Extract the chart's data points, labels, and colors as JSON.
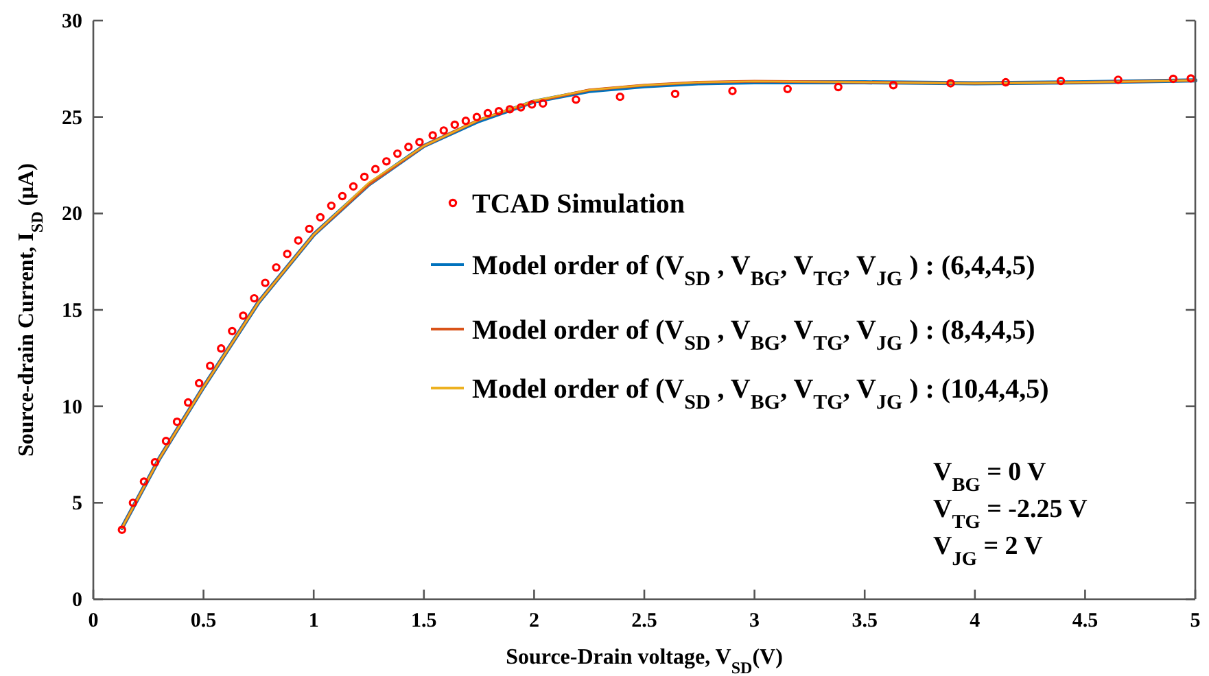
{
  "chart_data": {
    "type": "line",
    "xlabel": "Source-Drain voltage, V$_{SD}$(V)",
    "ylabel": "Source-drain Current, I$_{SD}$  (μA)",
    "xlim": [
      0,
      5
    ],
    "xticks": [
      0,
      0.5,
      1,
      1.5,
      2,
      2.5,
      3,
      3.5,
      4,
      4.5,
      5
    ],
    "ylim": [
      0,
      30
    ],
    "yticks": [
      0,
      5,
      10,
      15,
      20,
      25,
      30
    ],
    "grid": false,
    "legend": "center",
    "series": [
      {
        "name": "TCAD Simulation",
        "type": "scatter",
        "marker": "circle",
        "color": "#ff0000",
        "x": [
          0.13,
          0.18,
          0.23,
          0.28,
          0.33,
          0.38,
          0.43,
          0.48,
          0.53,
          0.58,
          0.63,
          0.68,
          0.73,
          0.78,
          0.83,
          0.88,
          0.93,
          0.98,
          1.03,
          1.08,
          1.13,
          1.18,
          1.23,
          1.28,
          1.33,
          1.38,
          1.43,
          1.48,
          1.54,
          1.59,
          1.64,
          1.69,
          1.74,
          1.79,
          1.84,
          1.89,
          1.94,
          1.99,
          2.04,
          2.19,
          2.39,
          2.64,
          2.9,
          3.15,
          3.38,
          3.63,
          3.89,
          4.14,
          4.39,
          4.65,
          4.9,
          4.98
        ],
        "values": [
          3.6,
          5.0,
          6.1,
          7.1,
          8.2,
          9.2,
          10.2,
          11.2,
          12.1,
          13.0,
          13.9,
          14.7,
          15.6,
          16.4,
          17.2,
          17.9,
          18.6,
          19.2,
          19.8,
          20.4,
          20.9,
          21.4,
          21.9,
          22.3,
          22.7,
          23.1,
          23.45,
          23.7,
          24.05,
          24.3,
          24.6,
          24.8,
          25.0,
          25.2,
          25.3,
          25.4,
          25.5,
          25.65,
          25.7,
          25.9,
          26.05,
          26.2,
          26.35,
          26.45,
          26.55,
          26.65,
          26.75,
          26.8,
          26.87,
          26.93,
          26.98,
          27.0
        ]
      },
      {
        "name": "Model order of (V$_{SD}$ , V$_{BG}$, V$_{TG}$, V$_{JG}$ ) : (6,4,4,5)",
        "color": "#0072bd",
        "x": [
          0.13,
          0.3,
          0.5,
          0.75,
          1.0,
          1.25,
          1.5,
          1.75,
          2.0,
          2.25,
          2.5,
          2.75,
          3.0,
          3.5,
          4.0,
          4.5,
          5.0
        ],
        "values": [
          3.7,
          7.3,
          11.0,
          15.4,
          18.9,
          21.5,
          23.5,
          24.8,
          25.8,
          26.35,
          26.6,
          26.75,
          26.8,
          26.8,
          26.75,
          26.8,
          26.9
        ]
      },
      {
        "name": "Model order of (V$_{SD}$ , V$_{BG}$, V$_{TG}$, V$_{JG}$ ) : (8,4,4,5)",
        "color": "#d95319",
        "x": [
          0.13,
          0.3,
          0.5,
          0.75,
          1.0,
          1.25,
          1.5,
          1.75,
          2.0,
          2.25,
          2.5,
          2.75,
          3.0,
          3.5,
          4.0,
          4.5,
          5.0
        ],
        "values": [
          3.7,
          7.3,
          11.0,
          15.4,
          18.9,
          21.5,
          23.5,
          24.85,
          25.8,
          26.4,
          26.65,
          26.8,
          26.85,
          26.8,
          26.75,
          26.8,
          26.9
        ]
      },
      {
        "name": "Model order of (V$_{SD}$ , V$_{BG}$, V$_{TG}$, V$_{JG}$ ) : (10,4,4,5)",
        "color": "#edb120",
        "x": [
          0.13,
          0.3,
          0.5,
          0.75,
          1.0,
          1.25,
          1.5,
          1.75,
          2.0,
          2.25,
          2.5,
          2.75,
          3.0,
          3.5,
          4.0,
          4.5,
          5.0
        ],
        "values": [
          3.7,
          7.3,
          11.0,
          15.4,
          18.9,
          21.6,
          23.5,
          24.85,
          25.85,
          26.4,
          26.65,
          26.8,
          26.85,
          26.8,
          26.75,
          26.8,
          26.9
        ]
      }
    ],
    "annotations": [
      "V$_{BG}$  = 0 V",
      "V$_{TG}$  = -2.25 V",
      "V$_{JG}$  = 2 V"
    ]
  }
}
